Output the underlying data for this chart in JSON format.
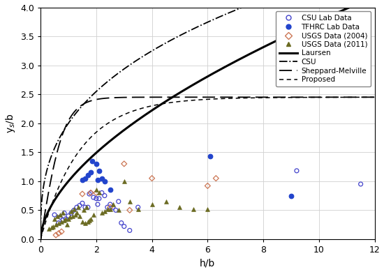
{
  "title": "",
  "xlabel": "h/b",
  "ylabel": "y$_s$/b",
  "xlim": [
    0,
    12
  ],
  "ylim": [
    0,
    4.0
  ],
  "xticks": [
    0,
    2,
    4,
    6,
    8,
    10,
    12
  ],
  "yticks": [
    0.0,
    0.5,
    1.0,
    1.5,
    2.0,
    2.5,
    3.0,
    3.5,
    4.0
  ],
  "csu_lab_x": [
    0.5,
    0.65,
    0.7,
    0.8,
    0.85,
    0.9,
    1.0,
    1.1,
    1.2,
    1.3,
    1.4,
    1.5,
    1.6,
    1.7,
    1.75,
    1.8,
    1.9,
    2.0,
    2.05,
    2.1,
    2.2,
    2.3,
    2.4,
    2.5,
    2.6,
    2.7,
    2.8,
    2.9,
    3.0,
    3.2,
    3.5,
    9.2,
    11.5
  ],
  "csu_lab_y": [
    0.42,
    0.28,
    0.38,
    0.33,
    0.45,
    0.35,
    0.4,
    0.45,
    0.5,
    0.55,
    0.58,
    0.62,
    0.55,
    0.55,
    0.78,
    0.8,
    0.72,
    0.7,
    0.6,
    0.7,
    0.8,
    0.75,
    0.55,
    0.6,
    0.55,
    0.5,
    0.65,
    0.28,
    0.22,
    0.15,
    0.55,
    1.18,
    0.95
  ],
  "tfhrc_x": [
    1.5,
    1.6,
    1.7,
    1.8,
    1.85,
    2.0,
    2.05,
    2.1,
    2.2,
    2.3,
    2.5,
    6.1,
    9.0
  ],
  "tfhrc_y": [
    1.02,
    1.05,
    1.1,
    1.15,
    1.35,
    1.3,
    1.02,
    1.18,
    1.05,
    1.0,
    0.85,
    1.43,
    0.75
  ],
  "usgs04_x": [
    0.55,
    0.65,
    0.75,
    1.5,
    1.8,
    2.0,
    2.5,
    3.0,
    3.2,
    4.0,
    6.0,
    6.3
  ],
  "usgs04_y": [
    0.07,
    0.1,
    0.13,
    0.78,
    0.8,
    0.8,
    0.55,
    1.3,
    0.5,
    1.05,
    0.92,
    1.05
  ],
  "usgs11_x": [
    0.3,
    0.4,
    0.45,
    0.5,
    0.55,
    0.6,
    0.65,
    0.7,
    0.75,
    0.8,
    0.85,
    0.9,
    0.95,
    1.0,
    1.05,
    1.1,
    1.15,
    1.2,
    1.25,
    1.3,
    1.35,
    1.4,
    1.5,
    1.55,
    1.6,
    1.65,
    1.7,
    1.75,
    1.8,
    1.9,
    2.0,
    2.1,
    2.2,
    2.3,
    2.4,
    2.5,
    2.6,
    2.8,
    3.0,
    3.2,
    3.5,
    4.0,
    4.5,
    5.0,
    5.5,
    6.0
  ],
  "usgs11_y": [
    0.18,
    0.2,
    0.22,
    0.35,
    0.25,
    0.4,
    0.28,
    0.42,
    0.3,
    0.45,
    0.32,
    0.35,
    0.25,
    0.35,
    0.38,
    0.48,
    0.4,
    0.52,
    0.42,
    0.45,
    0.55,
    0.4,
    0.3,
    0.5,
    0.28,
    0.55,
    0.3,
    0.32,
    0.35,
    0.42,
    0.85,
    0.8,
    0.45,
    0.48,
    0.52,
    0.52,
    0.6,
    0.5,
    1.0,
    0.65,
    0.52,
    0.6,
    0.65,
    0.55,
    0.52,
    0.52
  ],
  "csu_lab_color": "#4444cc",
  "tfhrc_color": "#2244cc",
  "usgs04_color": "#cc7755",
  "usgs11_color": "#6b6b22",
  "background_color": "#ffffff",
  "grid_color": "#d0d0d0"
}
